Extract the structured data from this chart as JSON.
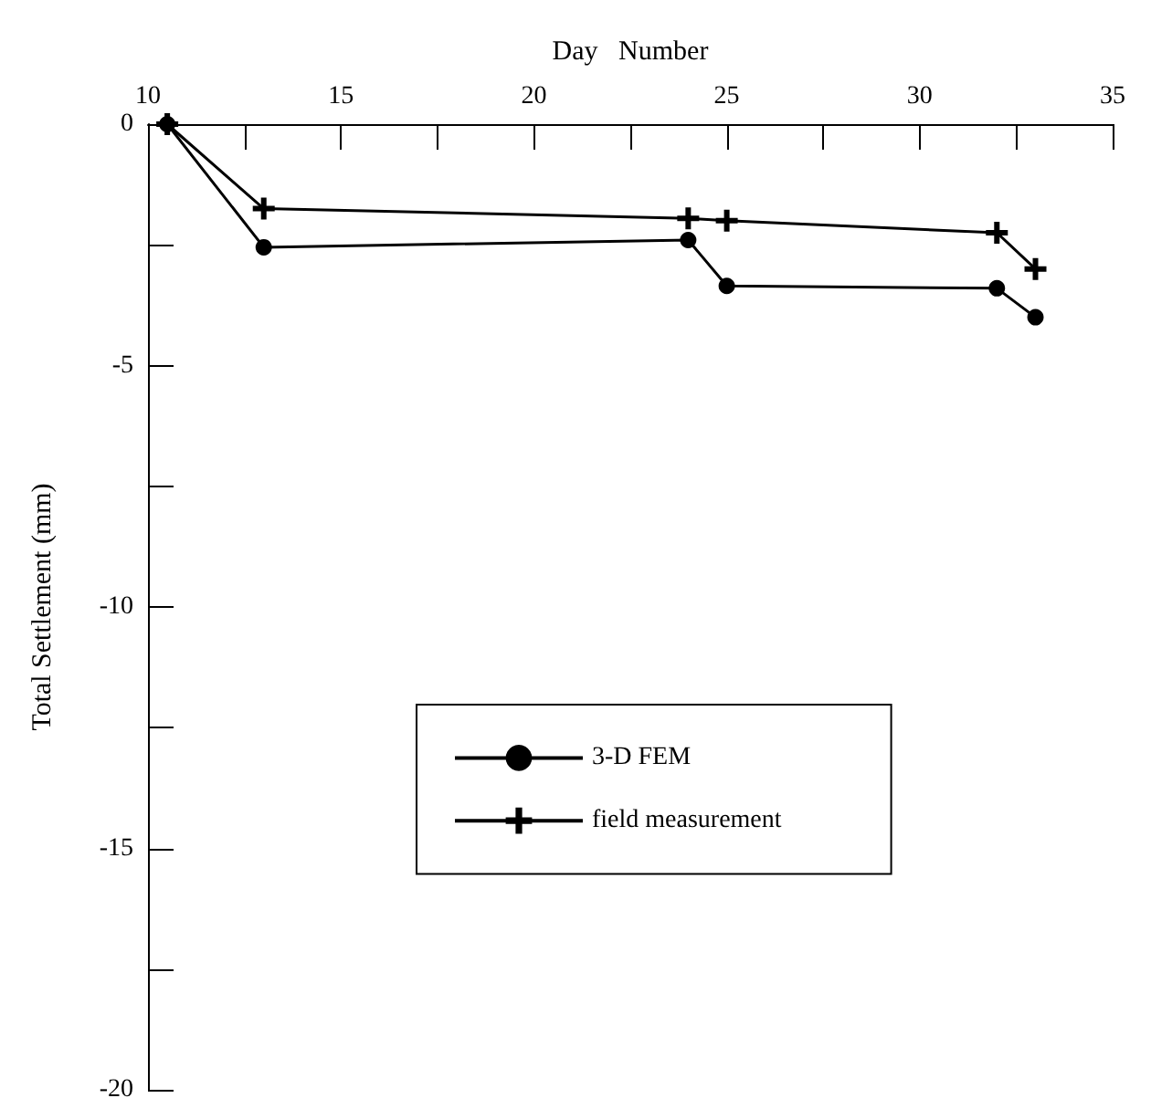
{
  "chart_data": {
    "type": "line",
    "xlabel": "Day   Number",
    "ylabel": "Total Settlement (mm)",
    "xlim": [
      10,
      35
    ],
    "xticks": [
      10,
      {
        "value": 12.5,
        "label": null
      },
      15,
      {
        "value": 17.5,
        "label": null
      },
      20,
      {
        "value": 22.5,
        "label": null
      },
      25,
      {
        "value": 27.5,
        "label": null
      },
      30,
      {
        "value": 32.5,
        "label": null
      },
      35
    ],
    "ylim": [
      -20,
      0
    ],
    "yticks": [
      -20,
      {
        "value": -17.5,
        "label": null
      },
      -15,
      {
        "value": -12.5,
        "label": null
      },
      -10,
      {
        "value": -7.5,
        "label": null
      },
      -5,
      {
        "value": -2.5,
        "label": null
      },
      0
    ],
    "grid": false,
    "legend": "bottom",
    "series": [
      {
        "name": "3-D FEM",
        "color": "#000000",
        "marker": "circle",
        "x": [
          10.5,
          13,
          24,
          25,
          32,
          33
        ],
        "values": [
          0,
          -2.55,
          -2.4,
          -3.35,
          -3.4,
          -4.0
        ]
      },
      {
        "name": "field measurement",
        "color": "#000000",
        "marker": "cross",
        "x": [
          10.5,
          13,
          24,
          25,
          32,
          33
        ],
        "values": [
          0,
          -1.75,
          -1.95,
          -2.0,
          -2.25,
          -3.0
        ]
      }
    ]
  }
}
